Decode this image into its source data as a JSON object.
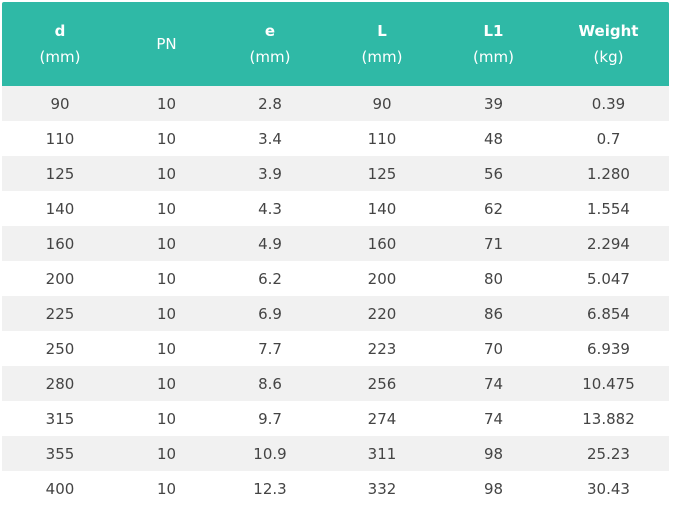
{
  "table": {
    "columns": [
      {
        "name": "d",
        "unit": "(mm)"
      },
      {
        "name": "PN",
        "unit": ""
      },
      {
        "name": "e",
        "unit": "(mm)"
      },
      {
        "name": "L",
        "unit": "(mm)"
      },
      {
        "name": "L1",
        "unit": "(mm)"
      },
      {
        "name": "Weight",
        "unit": "(kg)"
      }
    ],
    "rows": [
      [
        "90",
        "10",
        "2.8",
        "90",
        "39",
        "0.39"
      ],
      [
        "110",
        "10",
        "3.4",
        "110",
        "48",
        "0.7"
      ],
      [
        "125",
        "10",
        "3.9",
        "125",
        "56",
        "1.280"
      ],
      [
        "140",
        "10",
        "4.3",
        "140",
        "62",
        "1.554"
      ],
      [
        "160",
        "10",
        "4.9",
        "160",
        "71",
        "2.294"
      ],
      [
        "200",
        "10",
        "6.2",
        "200",
        "80",
        "5.047"
      ],
      [
        "225",
        "10",
        "6.9",
        "220",
        "86",
        "6.854"
      ],
      [
        "250",
        "10",
        "7.7",
        "223",
        "70",
        "6.939"
      ],
      [
        "280",
        "10",
        "8.6",
        "256",
        "74",
        "10.475"
      ],
      [
        "315",
        "10",
        "9.7",
        "274",
        "74",
        "13.882"
      ],
      [
        "355",
        "10",
        "10.9",
        "311",
        "98",
        "25.23"
      ],
      [
        "400",
        "10",
        "12.3",
        "332",
        "98",
        "30.43"
      ]
    ]
  },
  "colors": {
    "header_bg": "#2fb9a6",
    "header_text": "#ffffff",
    "alt_row_bg": "#f1f1f1",
    "body_text": "#444444"
  }
}
